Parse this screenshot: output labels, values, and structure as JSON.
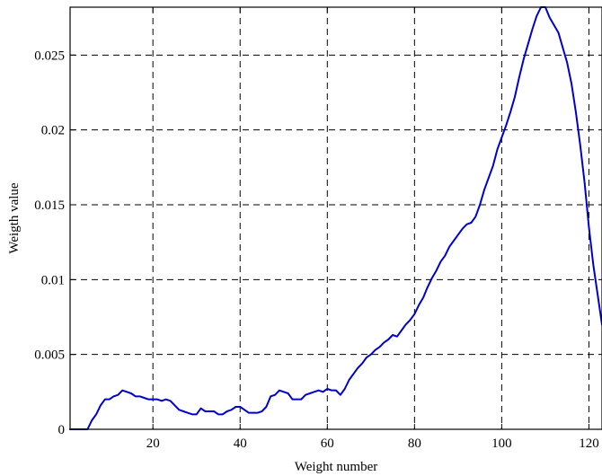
{
  "chart_data": {
    "type": "line",
    "title": "",
    "xlabel": "Weight number",
    "ylabel": "Weigth value",
    "xlim": [
      1,
      123
    ],
    "ylim": [
      0,
      0.0282
    ],
    "grid": true,
    "x_ticks": [
      20,
      40,
      60,
      80,
      100,
      120
    ],
    "x_tick_labels": [
      "20",
      "40",
      "60",
      "80",
      "100",
      "120"
    ],
    "y_ticks": [
      0,
      0.005,
      0.01,
      0.015,
      0.02,
      0.025
    ],
    "y_tick_labels": [
      "0",
      "0.005",
      "0.01",
      "0.015",
      "0.02",
      "0.025"
    ],
    "series": [
      {
        "color": "#0000cc",
        "x": [
          1,
          2,
          3,
          4,
          5,
          6,
          7,
          8,
          9,
          10,
          11,
          12,
          13,
          14,
          15,
          16,
          17,
          18,
          19,
          20,
          21,
          22,
          23,
          24,
          25,
          26,
          27,
          28,
          29,
          30,
          31,
          32,
          33,
          34,
          35,
          36,
          37,
          38,
          39,
          40,
          41,
          42,
          43,
          44,
          45,
          46,
          47,
          48,
          49,
          50,
          51,
          52,
          53,
          54,
          55,
          56,
          57,
          58,
          59,
          60,
          61,
          62,
          63,
          64,
          65,
          66,
          67,
          68,
          69,
          70,
          71,
          72,
          73,
          74,
          75,
          76,
          77,
          78,
          79,
          80,
          81,
          82,
          83,
          84,
          85,
          86,
          87,
          88,
          89,
          90,
          91,
          92,
          93,
          94,
          95,
          96,
          97,
          98,
          99,
          100,
          101,
          102,
          103,
          104,
          105,
          106,
          107,
          108,
          109,
          110,
          111,
          112,
          113,
          114,
          115,
          116,
          117,
          118,
          119,
          120,
          121,
          122,
          123
        ],
        "y": [
          0,
          0,
          0,
          0,
          0,
          0.0006,
          0.001,
          0.0016,
          0.002,
          0.002,
          0.0022,
          0.0023,
          0.0026,
          0.0025,
          0.0024,
          0.0022,
          0.0022,
          0.0021,
          0.002,
          0.002,
          0.002,
          0.0019,
          0.002,
          0.0019,
          0.0016,
          0.0013,
          0.0012,
          0.0011,
          0.001,
          0.001,
          0.0014,
          0.0012,
          0.0012,
          0.0012,
          0.001,
          0.001,
          0.0012,
          0.0013,
          0.0015,
          0.0015,
          0.0013,
          0.0011,
          0.0011,
          0.0011,
          0.0012,
          0.0015,
          0.0022,
          0.0023,
          0.0026,
          0.0025,
          0.0024,
          0.002,
          0.002,
          0.002,
          0.0023,
          0.0024,
          0.0025,
          0.0026,
          0.0025,
          0.0027,
          0.0026,
          0.0026,
          0.0023,
          0.0027,
          0.0033,
          0.0037,
          0.0041,
          0.0044,
          0.0048,
          0.005,
          0.0053,
          0.0055,
          0.0058,
          0.006,
          0.0063,
          0.0062,
          0.0066,
          0.007,
          0.0073,
          0.0077,
          0.0083,
          0.0088,
          0.0095,
          0.0101,
          0.0106,
          0.0112,
          0.0116,
          0.0122,
          0.0126,
          0.013,
          0.0134,
          0.0137,
          0.0138,
          0.0142,
          0.015,
          0.016,
          0.0168,
          0.0176,
          0.0187,
          0.0195,
          0.0203,
          0.0212,
          0.0222,
          0.0235,
          0.0247,
          0.0257,
          0.0267,
          0.0276,
          0.0282,
          0.0282,
          0.0275,
          0.027,
          0.0265,
          0.0255,
          0.0245,
          0.0231,
          0.0212,
          0.019,
          0.0165,
          0.0135,
          0.011,
          0.009,
          0.007
        ]
      }
    ]
  }
}
